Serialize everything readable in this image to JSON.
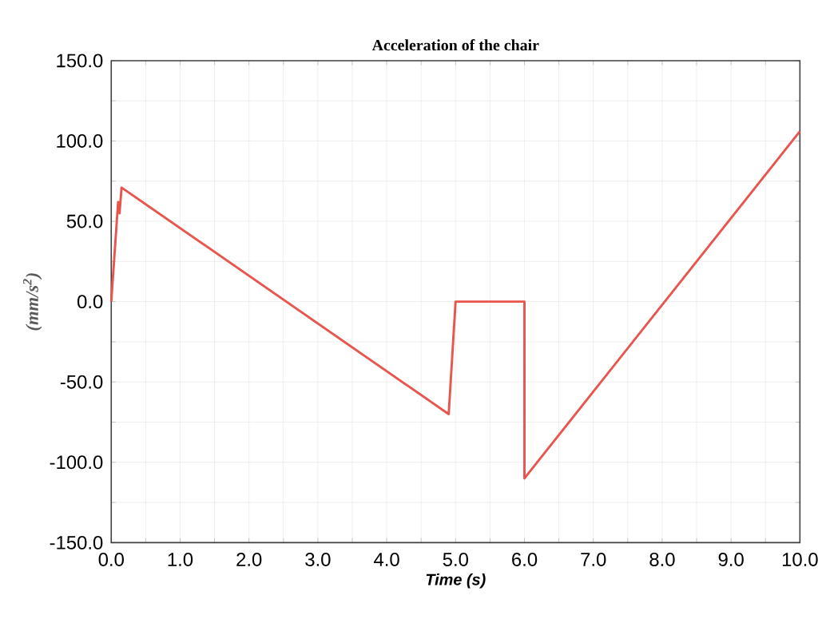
{
  "chart_data": {
    "type": "line",
    "title": "Acceleration of the chair",
    "xlabel": "Time (s)",
    "ylabel": "(mm/s$^{2}$)",
    "x": [
      0,
      0.1,
      0.12,
      0.15,
      4.9,
      5.0,
      6.0,
      6.0,
      10.0
    ],
    "series": [
      {
        "color": "#e8554e",
        "values": [
          0,
          62,
          55,
          71,
          -70,
          0,
          0,
          -110,
          106
        ]
      }
    ],
    "xlim": [
      0,
      10
    ],
    "ylim": [
      -150,
      150
    ],
    "xticks": [
      {
        "value": 0,
        "label": "0.0"
      },
      {
        "value": 0.5,
        "label": null
      },
      {
        "value": 1,
        "label": "1.0"
      },
      {
        "value": 1.5,
        "label": null
      },
      {
        "value": 2,
        "label": "2.0"
      },
      {
        "value": 2.5,
        "label": null
      },
      {
        "value": 3,
        "label": "3.0"
      },
      {
        "value": 3.5,
        "label": null
      },
      {
        "value": 4,
        "label": "4.0"
      },
      {
        "value": 4.5,
        "label": null
      },
      {
        "value": 5,
        "label": "5.0"
      },
      {
        "value": 5.5,
        "label": null
      },
      {
        "value": 6,
        "label": "6.0"
      },
      {
        "value": 6.5,
        "label": null
      },
      {
        "value": 7,
        "label": "7.0"
      },
      {
        "value": 7.5,
        "label": null
      },
      {
        "value": 8,
        "label": "8.0"
      },
      {
        "value": 8.5,
        "label": null
      },
      {
        "value": 9,
        "label": "9.0"
      },
      {
        "value": 9.5,
        "label": null
      },
      {
        "value": 10,
        "label": "10.0"
      }
    ],
    "yticks": [
      {
        "value": -150,
        "label": "-150.0"
      },
      {
        "value": -125,
        "label": null
      },
      {
        "value": -100,
        "label": "-100.0"
      },
      {
        "value": -75,
        "label": null
      },
      {
        "value": -50,
        "label": "-50.0"
      },
      {
        "value": -25,
        "label": null
      },
      {
        "value": 0,
        "label": "0.0"
      },
      {
        "value": 25,
        "label": null
      },
      {
        "value": 50,
        "label": "50.0"
      },
      {
        "value": 75,
        "label": null
      },
      {
        "value": 100,
        "label": "100.0"
      },
      {
        "value": 125,
        "label": null
      },
      {
        "value": 150,
        "label": "150.0"
      }
    ],
    "grid": true,
    "marker": "none",
    "line_style": "solid"
  }
}
